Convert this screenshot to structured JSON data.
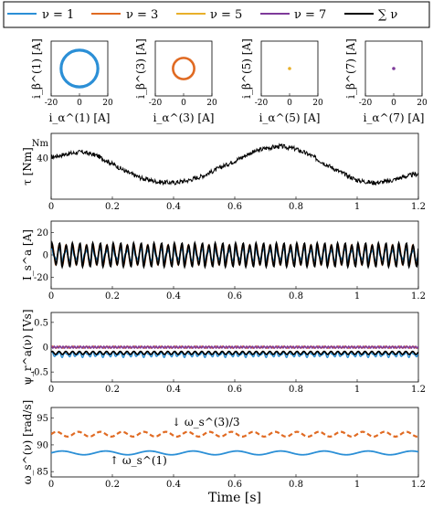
{
  "legend": {
    "items": [
      {
        "label": "ν = 1",
        "color": "#2b8fd6"
      },
      {
        "label": "ν = 3",
        "color": "#e06a22"
      },
      {
        "label": "ν = 5",
        "color": "#e8b02a"
      },
      {
        "label": "ν = 7",
        "color": "#7e3a9a"
      },
      {
        "label": "∑ ν",
        "color": "#000000"
      }
    ]
  },
  "chart_data": [
    {
      "type": "scatter",
      "title": "",
      "ylabel": "i_β^(1) [A]",
      "xlabel": "i_α^(1) [A]",
      "xlim": [
        -20,
        20
      ],
      "ylim": [
        -20,
        20
      ],
      "xticks": [
        "-20",
        "0",
        "20"
      ],
      "shape": "circle",
      "center": [
        0,
        0
      ],
      "radius": 13,
      "color": "#2b8fd6",
      "stroke": 3.2
    },
    {
      "type": "scatter",
      "title": "",
      "ylabel": "i_β^(3) [A]",
      "xlabel": "i_α^(3) [A]",
      "xlim": [
        -20,
        20
      ],
      "ylim": [
        -20,
        20
      ],
      "xticks": [
        "-20",
        "0",
        "20"
      ],
      "shape": "circle",
      "center": [
        0,
        0
      ],
      "radius": 7.5,
      "color": "#e06a22",
      "stroke": 2.6
    },
    {
      "type": "scatter",
      "title": "",
      "ylabel": "i_β^(5) [A]",
      "xlabel": "i_α^(5) [A]",
      "xlim": [
        -20,
        20
      ],
      "ylim": [
        -20,
        20
      ],
      "xticks": [
        "-20",
        "0",
        "20"
      ],
      "shape": "dot",
      "center": [
        0,
        0
      ],
      "radius": 0.8,
      "color": "#e8b02a"
    },
    {
      "type": "scatter",
      "title": "",
      "ylabel": "i_β^(7) [A]",
      "xlabel": "i_α^(7) [A]",
      "xlim": [
        -20,
        20
      ],
      "ylim": [
        -20,
        20
      ],
      "xticks": [
        "-20",
        "0",
        "20"
      ],
      "shape": "dot",
      "center": [
        0,
        0
      ],
      "radius": 1.0,
      "color": "#7e3a9a"
    },
    {
      "type": "line",
      "title": "",
      "ylabel": "τ [Nm]",
      "xlabel": "",
      "xlim": [
        0,
        1.2
      ],
      "ylim": [
        30,
        46
      ],
      "yticks": [
        40
      ],
      "ytick_labels": [
        "40"
      ],
      "y_label_top": "Nm",
      "series": [
        {
          "color": "#000000",
          "x": [
            0,
            0.05,
            0.1,
            0.15,
            0.2,
            0.25,
            0.3,
            0.35,
            0.4,
            0.45,
            0.5,
            0.55,
            0.6,
            0.65,
            0.7,
            0.75,
            0.8,
            0.85,
            0.9,
            0.95,
            1.0,
            1.05,
            1.1,
            1.15,
            1.2
          ],
          "y": [
            40.2,
            41.0,
            41.5,
            40.6,
            38.6,
            36.5,
            35.0,
            34.2,
            34.0,
            34.6,
            35.8,
            37.6,
            39.3,
            41.2,
            42.4,
            42.9,
            42.2,
            40.6,
            38.4,
            36.4,
            34.6,
            34.0,
            34.3,
            35.4,
            36.2
          ],
          "noise": 0.55
        }
      ]
    },
    {
      "type": "line",
      "title": "",
      "ylabel": "I_s^a [A]",
      "xlabel": "",
      "xlim": [
        0,
        1.2
      ],
      "ylim": [
        -30,
        30
      ],
      "yticks": [
        -20,
        0,
        20
      ],
      "ytick_labels": [
        "-20",
        "0",
        "20"
      ],
      "freq_hz": 15,
      "series": [
        {
          "name": "ν = 3",
          "color": "#e06a22",
          "kind": "harmonic",
          "amps": [
            0,
            0,
            0,
            9,
            0,
            0,
            0,
            0
          ],
          "phases": [
            0,
            0,
            0,
            0.4,
            0,
            0,
            0,
            0
          ]
        },
        {
          "name": "ν = 1",
          "color": "#2b8fd6",
          "kind": "harmonic",
          "amps": [
            13,
            0,
            0,
            4.5,
            0,
            1.5,
            0,
            0.8
          ],
          "phases": [
            0,
            0,
            0,
            0.6,
            0,
            1.2,
            0,
            0.3
          ]
        },
        {
          "name": "∑ ν",
          "color": "#000000",
          "kind": "harmonic",
          "amps": [
            13,
            0,
            0,
            9,
            0,
            1.8,
            0,
            1.2
          ],
          "phases": [
            0,
            0,
            0,
            0.4,
            0,
            1.0,
            0,
            0.6
          ]
        }
      ]
    },
    {
      "type": "line",
      "title": "",
      "ylabel": "ψ_r^a(ν) [Vs]",
      "xlabel": "",
      "xlim": [
        0,
        1.2
      ],
      "ylim": [
        -0.7,
        0.7
      ],
      "yticks": [
        -0.5,
        0,
        0.5
      ],
      "ytick_labels": [
        "-0.5",
        "0",
        "0.5"
      ],
      "freq_hz": 15,
      "series": [
        {
          "name": "ν = 3",
          "color": "#e06a22",
          "kind": "harmonic",
          "amps": [
            0,
            0,
            0,
            0.02,
            0,
            0,
            0,
            0
          ],
          "phases": [
            0,
            0,
            0,
            0.2,
            0,
            0,
            0,
            0
          ]
        },
        {
          "name": "ν = 7",
          "color": "#7e3a9a",
          "kind": "harmonic",
          "amps": [
            0,
            0,
            0,
            0,
            0,
            0,
            0,
            0.02
          ],
          "phases": [
            0,
            0,
            0,
            0,
            0,
            0,
            0,
            1.0
          ]
        },
        {
          "name": "ν = 1",
          "color": "#2b8fd6",
          "kind": "harmonic",
          "amps": [
            0.5,
            0,
            0,
            0.04,
            0,
            0.02,
            0,
            0
          ],
          "phases": [
            -0.3,
            0,
            0,
            0.8,
            0,
            0.5,
            0,
            0
          ]
        },
        {
          "name": "∑ ν",
          "color": "#000000",
          "kind": "harmonic",
          "amps": [
            0.58,
            0,
            0,
            0.03,
            0,
            0,
            0,
            0
          ],
          "phases": [
            -0.2,
            0,
            0,
            0.6,
            0,
            0,
            0,
            0
          ]
        }
      ]
    },
    {
      "type": "line",
      "title": "",
      "ylabel": "ω_s^(ν) [rad/s]",
      "xlabel": "Time [s]",
      "xlim": [
        0,
        1.2
      ],
      "ylim": [
        84,
        97
      ],
      "yticks": [
        85,
        90,
        95
      ],
      "ytick_labels": [
        "85",
        "90",
        "95"
      ],
      "xticks": [
        0,
        0.2,
        0.4,
        0.6,
        0.8,
        1,
        1.2
      ],
      "xtick_labels": [
        "0",
        "0.2",
        "0.4",
        "0.6",
        "0.8",
        "1",
        "1.2"
      ],
      "series": [
        {
          "name": "ω_s^(3)/3",
          "color": "#e06a22",
          "kind": "level",
          "level": 92.0,
          "ripple": 0.45,
          "ripple_hz": 14,
          "dashed": true
        },
        {
          "name": "ω_s^(1)",
          "color": "#2b8fd6",
          "kind": "level",
          "level": 88.5,
          "ripple": 0.35,
          "ripple_hz": 7,
          "dashed": false
        }
      ],
      "annotations": [
        {
          "text": "↓ ω_s^(3)/3",
          "color": "#e06a22"
        },
        {
          "text": "↑ ω_s^(1)",
          "color": "#2b8fd6"
        }
      ]
    }
  ]
}
